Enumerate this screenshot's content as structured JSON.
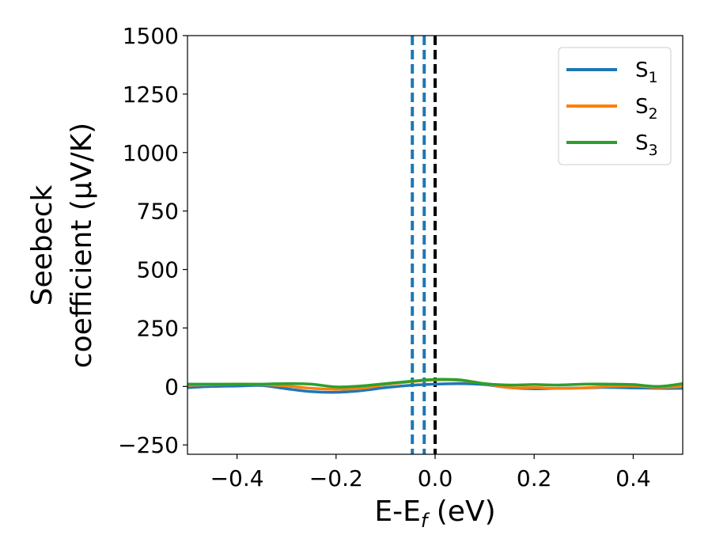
{
  "chart_data": {
    "type": "line",
    "xlabel": {
      "main": "E-E",
      "sub": "f",
      "tail": " (eV)"
    },
    "ylabel": {
      "line1": "Seebeck",
      "line2": "coefficient  (μV/K)"
    },
    "xlim": [
      -0.5,
      0.5
    ],
    "ylim": [
      -290,
      1500
    ],
    "xticks": [
      -0.4,
      -0.2,
      0.0,
      0.2,
      0.4
    ],
    "xtick_labels": [
      "−0.4",
      "−0.2",
      "0.0",
      "0.2",
      "0.4"
    ],
    "yticks": [
      -250,
      0,
      250,
      500,
      750,
      1000,
      1250,
      1500
    ],
    "ytick_labels": [
      "−250",
      "0",
      "250",
      "500",
      "750",
      "1000",
      "1250",
      "1500"
    ],
    "grid": false,
    "legend_position": "top-right",
    "series": [
      {
        "name": "S",
        "sub": "1",
        "color": "#1f77b4",
        "x": [
          -0.5,
          -0.45,
          -0.4,
          -0.35,
          -0.3,
          -0.25,
          -0.2,
          -0.15,
          -0.1,
          -0.05,
          0.0,
          0.05,
          0.1,
          0.15,
          0.2,
          0.25,
          0.3,
          0.35,
          0.4,
          0.45,
          0.5
        ],
        "y": [
          -5,
          0,
          2,
          4,
          -10,
          -22,
          -25,
          -18,
          -5,
          5,
          10,
          12,
          8,
          -5,
          -10,
          -8,
          -6,
          -4,
          -6,
          -8,
          -8
        ]
      },
      {
        "name": "S",
        "sub": "2",
        "color": "#ff7f0e",
        "x": [
          -0.5,
          -0.45,
          -0.4,
          -0.35,
          -0.3,
          -0.25,
          -0.2,
          -0.15,
          -0.1,
          -0.05,
          0.0,
          0.05,
          0.1,
          0.15,
          0.2,
          0.25,
          0.3,
          0.35,
          0.4,
          0.45,
          0.5
        ],
        "y": [
          5,
          8,
          10,
          8,
          2,
          -8,
          -12,
          -8,
          8,
          20,
          28,
          26,
          12,
          -5,
          -5,
          -8,
          -6,
          0,
          2,
          -4,
          0
        ]
      },
      {
        "name": "S",
        "sub": "3",
        "color": "#2ca02c",
        "x": [
          -0.5,
          -0.45,
          -0.4,
          -0.35,
          -0.3,
          -0.25,
          -0.2,
          -0.15,
          -0.1,
          -0.05,
          0.0,
          0.05,
          0.1,
          0.15,
          0.2,
          0.25,
          0.3,
          0.35,
          0.4,
          0.45,
          0.5
        ],
        "y": [
          10,
          10,
          10,
          10,
          12,
          10,
          -2,
          2,
          12,
          22,
          30,
          28,
          12,
          6,
          8,
          6,
          10,
          10,
          8,
          0,
          12
        ]
      }
    ],
    "vertical_lines": [
      {
        "x": -0.046,
        "color": "#1f77b4",
        "style": "dashed"
      },
      {
        "x": -0.022,
        "color": "#1f77b4",
        "style": "dashed"
      },
      {
        "x": 0.0,
        "color": "#000000",
        "style": "dashed"
      }
    ]
  }
}
